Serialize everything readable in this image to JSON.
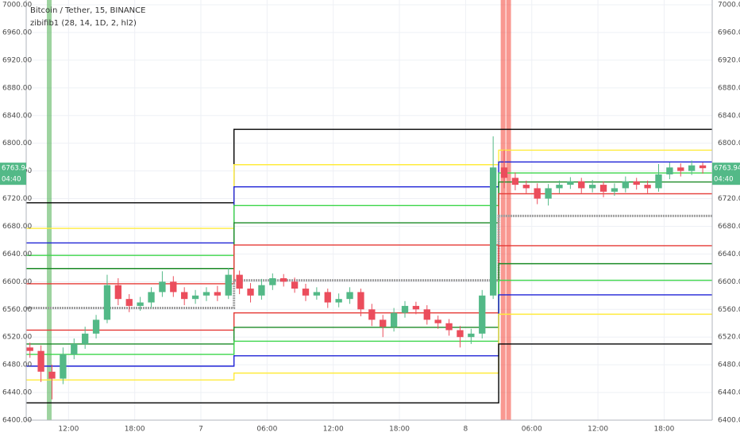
{
  "chart_data": {
    "type": "candlestick",
    "title": "Bitcoin / Tether, 15, BINANCE",
    "subtitle": "zibifib1 (28, 14, 1D, 2, hl2)",
    "up_color": "#53b987",
    "down_color": "#eb4d5c",
    "x": [
      8.5,
      9.5,
      10.5,
      11.5,
      12.5,
      13.5,
      14.5,
      15.5,
      16.5,
      17.5,
      18.5,
      19.5,
      20.5,
      21.5,
      22.5,
      23.5,
      24.5,
      25.5,
      26.5,
      27.5,
      28.5,
      29.5,
      30.5,
      31.5,
      32.5,
      33.5,
      34.5,
      35.5,
      36.5,
      37.5,
      38.5,
      39.5,
      40.5,
      41.5,
      42.5,
      43.5,
      44.5,
      45.5,
      46.5,
      47.5,
      48.5,
      49.5,
      50.5,
      51.5,
      52.5,
      53.5,
      54.5,
      55.5,
      56.5,
      57.5,
      58.5,
      59.5,
      60.5,
      61.5,
      62.5,
      63.5,
      64.5,
      65.5,
      66.5,
      67.5,
      68.5,
      69.5
    ],
    "open": [
      6505,
      6500,
      6470,
      6460,
      6495,
      6510,
      6525,
      6545,
      6595,
      6575,
      6565,
      6570,
      6585,
      6600,
      6585,
      6575,
      6580,
      6585,
      6580,
      6610,
      6590,
      6580,
      6595,
      6605,
      6600,
      6590,
      6580,
      6585,
      6570,
      6575,
      6585,
      6560,
      6545,
      6535,
      6555,
      6565,
      6560,
      6545,
      6540,
      6530,
      6520,
      6525,
      6580,
      6765,
      6750,
      6740,
      6735,
      6720,
      6735,
      6740,
      6745,
      6735,
      6740,
      6730,
      6735,
      6745,
      6740,
      6735,
      6755,
      6765,
      6760,
      6768
    ],
    "high": [
      6512,
      6508,
      6480,
      6505,
      6518,
      6535,
      6552,
      6610,
      6605,
      6582,
      6578,
      6592,
      6615,
      6608,
      6592,
      6588,
      6592,
      6594,
      6620,
      6616,
      6598,
      6604,
      6612,
      6611,
      6606,
      6597,
      6592,
      6590,
      6583,
      6592,
      6590,
      6568,
      6552,
      6562,
      6572,
      6571,
      6566,
      6551,
      6546,
      6536,
      6532,
      6588,
      6810,
      6790,
      6758,
      6746,
      6742,
      6741,
      6746,
      6751,
      6750,
      6747,
      6745,
      6742,
      6752,
      6750,
      6746,
      6770,
      6772,
      6771,
      6775,
      6772
    ],
    "low": [
      6490,
      6455,
      6430,
      6452,
      6488,
      6503,
      6518,
      6540,
      6566,
      6556,
      6558,
      6562,
      6578,
      6578,
      6566,
      6568,
      6572,
      6572,
      6575,
      6582,
      6570,
      6574,
      6588,
      6593,
      6584,
      6572,
      6574,
      6562,
      6563,
      6568,
      6550,
      6536,
      6520,
      6528,
      6548,
      6553,
      6538,
      6532,
      6522,
      6505,
      6510,
      6518,
      6575,
      6735,
      6732,
      6728,
      6712,
      6710,
      6728,
      6734,
      6728,
      6729,
      6722,
      6724,
      6729,
      6733,
      6728,
      6730,
      6748,
      6752,
      6754,
      6756
    ],
    "close": [
      6500,
      6470,
      6460,
      6495,
      6510,
      6525,
      6545,
      6595,
      6575,
      6565,
      6570,
      6585,
      6600,
      6585,
      6575,
      6580,
      6585,
      6580,
      6610,
      6590,
      6580,
      6595,
      6605,
      6600,
      6590,
      6580,
      6585,
      6570,
      6575,
      6585,
      6560,
      6545,
      6535,
      6555,
      6565,
      6560,
      6545,
      6540,
      6530,
      6520,
      6525,
      6580,
      6765,
      6750,
      6740,
      6735,
      6720,
      6735,
      6740,
      6745,
      6735,
      6740,
      6730,
      6735,
      6745,
      6740,
      6735,
      6755,
      6765,
      6760,
      6768,
      6763.94
    ],
    "level_breaks": [
      27,
      51
    ],
    "levels": [
      {
        "color": "#000000",
        "values": [
          6714,
          6820,
          6820
        ]
      },
      {
        "color": "#ffeb3b",
        "values": [
          6677,
          6769,
          6790
        ]
      },
      {
        "color": "#1e22d6",
        "values": [
          6656,
          6737,
          6773
        ]
      },
      {
        "color": "#3cd64a",
        "values": [
          6638,
          6710,
          6757
        ]
      },
      {
        "color": "#1b8a26",
        "values": [
          6619,
          6685,
          6744
        ]
      },
      {
        "color": "#e53935",
        "values": [
          6597,
          6653,
          6727
        ]
      },
      {
        "color": "#9e9e9e",
        "values": [
          6562,
          6602,
          6695
        ],
        "dash": true
      },
      {
        "color": "#e53935",
        "values": [
          6530,
          6555,
          6652
        ]
      },
      {
        "color": "#1b8a26",
        "values": [
          6510,
          6534,
          6626
        ]
      },
      {
        "color": "#3cd64a",
        "values": [
          6495,
          6514,
          6602
        ]
      },
      {
        "color": "#1e22d6",
        "values": [
          6478,
          6493,
          6581
        ]
      },
      {
        "color": "#ffeb3b",
        "values": [
          6458,
          6468,
          6553
        ]
      },
      {
        "color": "#000000",
        "values": [
          6425,
          6425,
          6510
        ]
      }
    ],
    "highlights": [
      {
        "x": 10.25,
        "color": "#4caf50"
      },
      {
        "x": 51.4,
        "color": "#f44336"
      },
      {
        "x": 51.9,
        "color": "#f44336"
      }
    ],
    "price_tag": {
      "value": 6763.94,
      "label": "6763.94",
      "countdown": "04:40"
    },
    "xlim": [
      8.16,
      70.36
    ],
    "xticks": [
      {
        "value": 12,
        "label": "12:00"
      },
      {
        "value": 18,
        "label": "18:00"
      },
      {
        "value": 24,
        "label": "7"
      },
      {
        "value": 30,
        "label": "06:00"
      },
      {
        "value": 36,
        "label": "12:00"
      },
      {
        "value": 42,
        "label": "18:00"
      },
      {
        "value": 48,
        "label": "8"
      },
      {
        "value": 54,
        "label": "06:00"
      },
      {
        "value": 60,
        "label": "12:00"
      },
      {
        "value": 66,
        "label": "18:00"
      }
    ],
    "ylim": [
      6400,
      7006.9
    ],
    "yticks": [
      {
        "value": 6400,
        "label": "6400.00"
      },
      {
        "value": 6440,
        "label": "6440.00"
      },
      {
        "value": 6480,
        "label": "6480.00"
      },
      {
        "value": 6520,
        "label": "6520.00"
      },
      {
        "value": 6560,
        "label": "6560.00"
      },
      {
        "value": 6600,
        "label": "6600.00"
      },
      {
        "value": 6640,
        "label": "6640.00"
      },
      {
        "value": 6680,
        "label": "6680.00"
      },
      {
        "value": 6720,
        "label": "6720.00"
      },
      {
        "value": 6760,
        "label": "6760.00"
      },
      {
        "value": 6800,
        "label": "6800.00"
      },
      {
        "value": 6840,
        "label": "6840.00"
      },
      {
        "value": 6880,
        "label": "6880.00"
      },
      {
        "value": 6920,
        "label": "6920.00"
      },
      {
        "value": 6960,
        "label": "6960.00"
      },
      {
        "value": 7000,
        "label": "7000.00"
      }
    ],
    "grid": true
  }
}
